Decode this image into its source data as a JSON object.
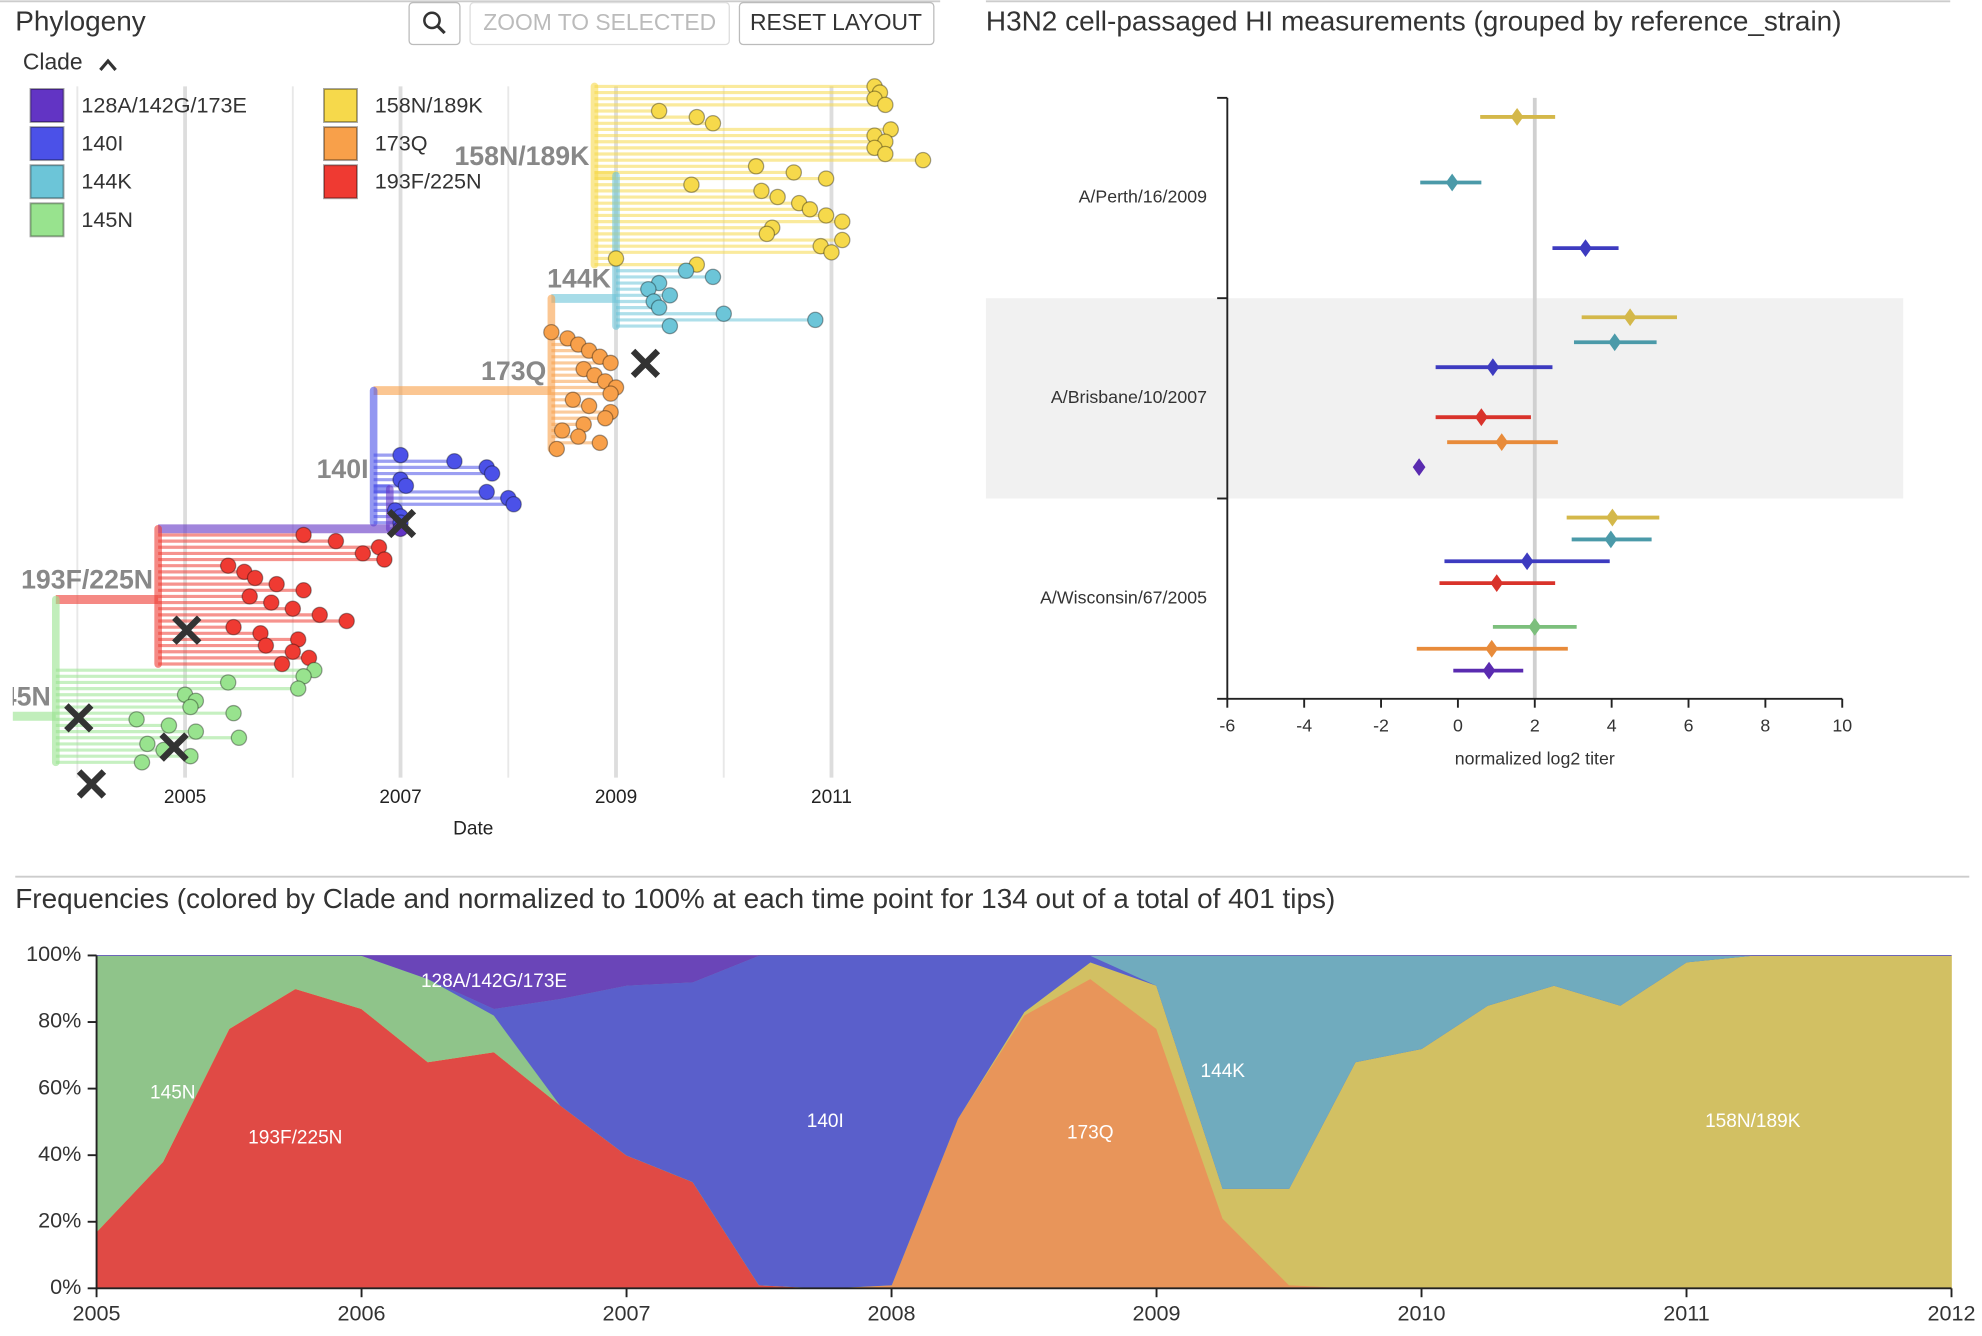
{
  "phylogeny": {
    "title": "Phylogeny",
    "buttons": [
      "ZOOM TO SELECTED",
      "RESET LAYOUT"
    ],
    "legend_title": "Clade"
  },
  "chart_data": [
    {
      "type": "tree",
      "xlabel": "Date",
      "xlim": [
        2003.4,
        2011.95
      ],
      "xticks": [
        2005,
        2007,
        2009,
        2011
      ],
      "minor_grid": [
        2004,
        2006,
        2008,
        2010
      ],
      "legend": [
        {
          "label": "128A/142G/173E",
          "color": "#6234c4"
        },
        {
          "label": "140I",
          "color": "#4b51e8"
        },
        {
          "label": "144K",
          "color": "#6cc5d8"
        },
        {
          "label": "145N",
          "color": "#98e38e"
        },
        {
          "label": "158N/189K",
          "color": "#f6d94b"
        },
        {
          "label": "173Q",
          "color": "#f8a04a"
        },
        {
          "label": "193F/225N",
          "color": "#ef3a32"
        }
      ],
      "clades": [
        {
          "label": "158N/189K",
          "show_label": true,
          "color": "#f6d94b",
          "start": 2008.8,
          "tips": [
            2011.4,
            2011.45,
            2011.4,
            2011.5,
            2009.4,
            2009.75,
            2009.9,
            2011.55,
            2011.4,
            2011.5,
            2011.4,
            2011.5,
            2011.85,
            2010.3,
            2010.65,
            2010.95,
            2009.7,
            2010.35,
            2010.5,
            2010.7,
            2010.8,
            2010.95,
            2011.1,
            2010.45,
            2010.4,
            2011.1,
            2010.9,
            2011.0,
            2009.0,
            2009.75
          ]
        },
        {
          "label": "144K",
          "show_label": true,
          "color": "#6cc5d8",
          "start": 2009.0,
          "tips": [
            2009.65,
            2009.9,
            2009.4,
            2009.3,
            2009.5,
            2009.35,
            2009.4,
            2010.0,
            2010.85,
            2009.5
          ]
        },
        {
          "label": "173Q",
          "show_label": true,
          "color": "#f8a04a",
          "start": 2008.4,
          "tips": [
            2008.4,
            2008.55,
            2008.65,
            2008.75,
            2008.85,
            2008.95,
            2008.7,
            2008.8,
            2008.9,
            2009.0,
            2008.95,
            2008.6,
            2008.75,
            2008.95,
            2008.9,
            2008.7,
            2008.5,
            2008.65,
            2008.85,
            2008.45
          ]
        },
        {
          "label": "140I",
          "show_label": true,
          "color": "#4b51e8",
          "start": 2006.75,
          "tips": [
            2007.0,
            2007.5,
            2007.8,
            2007.85,
            2007.0,
            2007.05,
            2007.8,
            2008.0,
            2008.05,
            2006.95,
            2007.0,
            2007.0
          ]
        },
        {
          "label": "128A/142G/173E",
          "show_label": false,
          "color": "#6234c4",
          "start": 2006.9,
          "tips": [
            2007.0
          ]
        },
        {
          "label": "193F/225N",
          "show_label": true,
          "color": "#ef3a32",
          "start": 2004.75,
          "tips": [
            2006.1,
            2006.4,
            2006.8,
            2006.65,
            2006.85,
            2005.4,
            2005.55,
            2005.65,
            2005.85,
            2006.1,
            2005.6,
            2005.8,
            2006.0,
            2006.25,
            2006.5,
            2005.45,
            2005.7,
            2006.05,
            2005.75,
            2006.0,
            2006.15,
            2005.9
          ]
        },
        {
          "label": "145N",
          "show_label": true,
          "color": "#98e38e",
          "start": 2003.8,
          "tips": [
            2006.2,
            2006.1,
            2005.4,
            2006.05,
            2005.0,
            2005.1,
            2005.05,
            2005.45,
            2004.55,
            2004.85,
            2005.1,
            2005.5,
            2004.65,
            2004.8,
            2005.05,
            2004.6
          ]
        }
      ]
    },
    {
      "type": "errorbar",
      "title": "H3N2 cell-passaged HI measurements (grouped by reference_strain)",
      "xlabel": "normalized log2 titer",
      "xlim": [
        -6,
        10
      ],
      "xticks": [
        -6,
        -4,
        -2,
        0,
        2,
        4,
        6,
        8,
        10
      ],
      "reference_line": 2,
      "groups": [
        {
          "name": "A/Perth/16/2009",
          "highlighted": false,
          "items": [
            {
              "color": "#d4b84a",
              "value": 1.54,
              "low": 0.58,
              "high": 2.53
            },
            null,
            null,
            {
              "color": "#4b9aa9",
              "value": -0.15,
              "low": -0.98,
              "high": 0.61
            },
            null,
            null,
            {
              "color": "#3d3bc0",
              "value": 3.32,
              "low": 2.46,
              "high": 4.18
            },
            null
          ]
        },
        {
          "name": "A/Brisbane/10/2007",
          "highlighted": true,
          "items": [
            {
              "color": "#d4b84a",
              "value": 4.48,
              "low": 3.22,
              "high": 5.7
            },
            {
              "color": "#4b9aa9",
              "value": 4.08,
              "low": 3.02,
              "high": 5.17
            },
            {
              "color": "#3d3bc0",
              "value": 0.91,
              "low": -0.58,
              "high": 2.46
            },
            null,
            {
              "color": "#d9332b",
              "value": 0.61,
              "low": -0.58,
              "high": 1.9
            },
            {
              "color": "#e88b3a",
              "value": 1.14,
              "low": -0.28,
              "high": 2.6
            },
            {
              "color": "#5a2bb0",
              "value": -1.01
            }
          ]
        },
        {
          "name": "A/Wisconsin/67/2005",
          "highlighted": false,
          "items": [
            {
              "color": "#d4b84a",
              "value": 4.02,
              "low": 2.83,
              "high": 5.24
            },
            {
              "color": "#4b9aa9",
              "value": 3.98,
              "low": 2.96,
              "high": 5.04
            },
            {
              "color": "#3d3bc0",
              "value": 1.8,
              "low": -0.35,
              "high": 3.95
            },
            {
              "color": "#d9332b",
              "value": 1.01,
              "low": -0.48,
              "high": 2.53
            },
            null,
            {
              "color": "#7cbf7c",
              "value": 2.0,
              "low": 0.91,
              "high": 3.09
            },
            {
              "color": "#e88b3a",
              "value": 0.88,
              "low": -1.07,
              "high": 2.86
            },
            {
              "color": "#5a2bb0",
              "value": 0.81,
              "low": -0.12,
              "high": 1.7
            }
          ]
        }
      ]
    },
    {
      "type": "stacked-area",
      "title": "Frequencies (colored by Clade and normalized to 100% at each time point for 134 out of a total of 401 tips)",
      "x": [
        2005,
        2005.25,
        2005.5,
        2005.75,
        2006,
        2006.25,
        2006.5,
        2006.75,
        2007,
        2007.25,
        2007.5,
        2007.75,
        2008,
        2008.25,
        2008.5,
        2008.75,
        2009,
        2009.25,
        2009.5,
        2009.75,
        2010,
        2010.25,
        2010.5,
        2010.75,
        2011,
        2011.25,
        2011.5,
        2011.75,
        2012
      ],
      "xlim": [
        2005,
        2012
      ],
      "xticks": [
        2005,
        2006,
        2007,
        2008,
        2009,
        2010,
        2011,
        2012
      ],
      "ylim": [
        0,
        100
      ],
      "yticks": [
        {
          "value": 0,
          "label": "0%"
        },
        {
          "value": 20,
          "label": "20%"
        },
        {
          "value": 40,
          "label": "40%"
        },
        {
          "value": 60,
          "label": "60%"
        },
        {
          "value": 80,
          "label": "80%"
        },
        {
          "value": 100,
          "label": "100%"
        }
      ],
      "series": [
        {
          "name": "193F/225N",
          "color": "#e04a45",
          "values": [
            17,
            38,
            78,
            90,
            84,
            68,
            71,
            55,
            40,
            32,
            1,
            0,
            0,
            0,
            0,
            0,
            0,
            0,
            0,
            0,
            0,
            0,
            0,
            0,
            0,
            0,
            0,
            0,
            0
          ]
        },
        {
          "name": "173Q",
          "color": "#e8955a",
          "values": [
            0,
            0,
            0,
            0,
            0,
            0,
            0,
            0,
            0,
            0,
            0,
            0,
            1,
            51,
            82,
            93,
            78,
            21,
            1,
            0,
            0,
            0,
            0,
            0,
            0,
            0,
            0,
            0,
            0
          ]
        },
        {
          "name": "158N/189K",
          "color": "#d2c063",
          "values": [
            0,
            0,
            0,
            0,
            0,
            0,
            0,
            0,
            0,
            0,
            0,
            0,
            0,
            0,
            1,
            5,
            13,
            9,
            29,
            68,
            72,
            85,
            91,
            85,
            98,
            100,
            100,
            100,
            100
          ]
        },
        {
          "name": "145N",
          "color": "#8fc48a",
          "values": [
            83,
            62,
            22,
            10,
            16,
            25,
            11,
            0,
            0,
            0,
            0,
            0,
            0,
            0,
            0,
            0,
            0,
            0,
            0,
            0,
            0,
            0,
            0,
            0,
            0,
            0,
            0,
            0,
            0
          ]
        },
        {
          "name": "140I",
          "color": "#5a5fcb",
          "values": [
            0,
            0,
            0,
            0,
            0,
            0,
            2,
            32,
            51,
            60,
            99,
            100,
            99,
            49,
            17,
            2,
            0,
            0,
            0,
            0,
            0,
            0,
            0,
            0,
            0,
            0,
            0,
            0,
            0
          ]
        },
        {
          "name": "144K",
          "color": "#70abbe",
          "values": [
            0,
            0,
            0,
            0,
            0,
            0,
            0,
            0,
            0,
            0,
            0,
            0,
            0,
            0,
            0,
            0,
            9,
            70,
            70,
            32,
            28,
            15,
            9,
            15,
            2,
            0,
            0,
            0,
            0
          ]
        },
        {
          "name": "128A/142G/173E",
          "color": "#6a45b8",
          "values": [
            0,
            0,
            0,
            0,
            0,
            7,
            16,
            13,
            9,
            8,
            0,
            0,
            0,
            0,
            0,
            0,
            0,
            0,
            0,
            0,
            0,
            0,
            0,
            0,
            0,
            0,
            0,
            0,
            0
          ]
        }
      ]
    }
  ]
}
